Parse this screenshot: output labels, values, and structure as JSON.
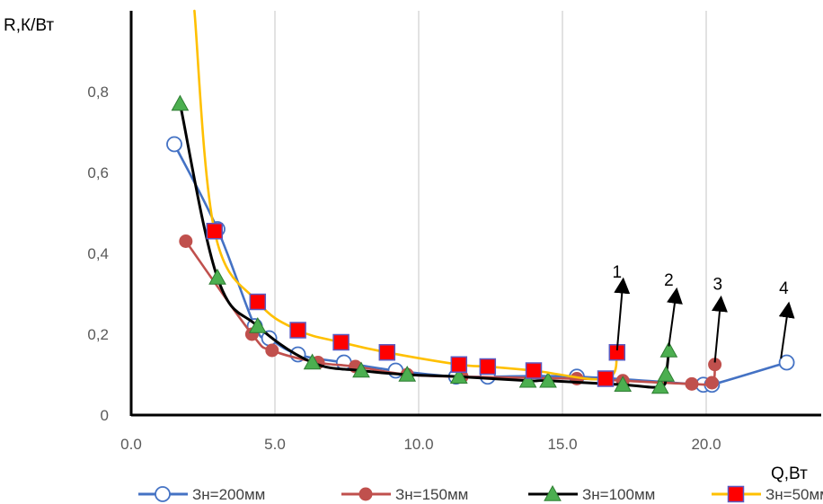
{
  "chart_data": {
    "type": "line",
    "xlabel": "Q,Вт",
    "ylabel": "R,К/Вт",
    "xlim": [
      0,
      24
    ],
    "ylim": [
      0,
      1.0
    ],
    "xticks": [
      0,
      5,
      10,
      15,
      20
    ],
    "xtick_labels": [
      "0.0",
      "5.0",
      "10.0",
      "15.0",
      "20.0"
    ],
    "yticks": [
      0,
      0.2,
      0.4,
      0.6,
      0.8
    ],
    "ytick_labels": [
      "0",
      "0,2",
      "0,4",
      "0,6",
      "0,8"
    ],
    "grid": "vertical",
    "legend_position": "bottom",
    "series": [
      {
        "name": "Зн=200мм",
        "color": "#4472C4",
        "marker": "open-circle",
        "x": [
          1.5,
          3.0,
          4.3,
          4.8,
          5.8,
          7.4,
          9.2,
          11.3,
          12.4,
          15.5,
          19.9,
          20.2,
          22.8
        ],
        "y": [
          0.67,
          0.46,
          0.22,
          0.19,
          0.15,
          0.13,
          0.11,
          0.095,
          0.095,
          0.095,
          0.075,
          0.075,
          0.13
        ]
      },
      {
        "name": "Зн=150мм",
        "color": "#C0504D",
        "marker": "filled-circle",
        "x": [
          1.9,
          4.2,
          4.9,
          6.5,
          7.8,
          9.6,
          11.5,
          15.5,
          17.1,
          19.5,
          20.2,
          20.3
        ],
        "y": [
          0.43,
          0.2,
          0.16,
          0.13,
          0.12,
          0.1,
          0.095,
          0.09,
          0.085,
          0.077,
          0.08,
          0.125
        ]
      },
      {
        "name": "Зн=100мм",
        "color": "#000000",
        "marker": "triangle",
        "x": [
          1.7,
          3.0,
          4.4,
          6.3,
          8.0,
          9.6,
          11.4,
          13.8,
          14.5,
          17.1,
          18.4,
          18.6,
          18.7
        ],
        "y": [
          0.77,
          0.34,
          0.22,
          0.13,
          0.11,
          0.1,
          0.095,
          0.085,
          0.085,
          0.075,
          0.07,
          0.1,
          0.16
        ]
      },
      {
        "name": "Зн=50мм",
        "color": "#FFC000",
        "marker": "red-square",
        "x": [
          2.9,
          4.4,
          5.8,
          7.3,
          8.9,
          11.4,
          12.4,
          14.0,
          16.5,
          16.9
        ],
        "y": [
          0.455,
          0.28,
          0.21,
          0.18,
          0.155,
          0.125,
          0.12,
          0.11,
          0.09,
          0.155
        ],
        "curve_start": [
          2.2,
          1.0
        ]
      }
    ],
    "annotations": [
      {
        "text": "1",
        "x": 16.9,
        "y": 0.34,
        "arrow_from": [
          16.9,
          0.16
        ],
        "arrow_to": [
          17.1,
          0.325
        ]
      },
      {
        "text": "2",
        "x": 18.7,
        "y": 0.32,
        "arrow_from": [
          18.7,
          0.17
        ],
        "arrow_to": [
          18.95,
          0.3
        ]
      },
      {
        "text": "3",
        "x": 20.4,
        "y": 0.31,
        "arrow_from": [
          20.3,
          0.13
        ],
        "arrow_to": [
          20.5,
          0.28
        ]
      },
      {
        "text": "4",
        "x": 22.7,
        "y": 0.3,
        "arrow_from": [
          22.6,
          0.14
        ],
        "arrow_to": [
          22.85,
          0.265
        ]
      }
    ]
  }
}
